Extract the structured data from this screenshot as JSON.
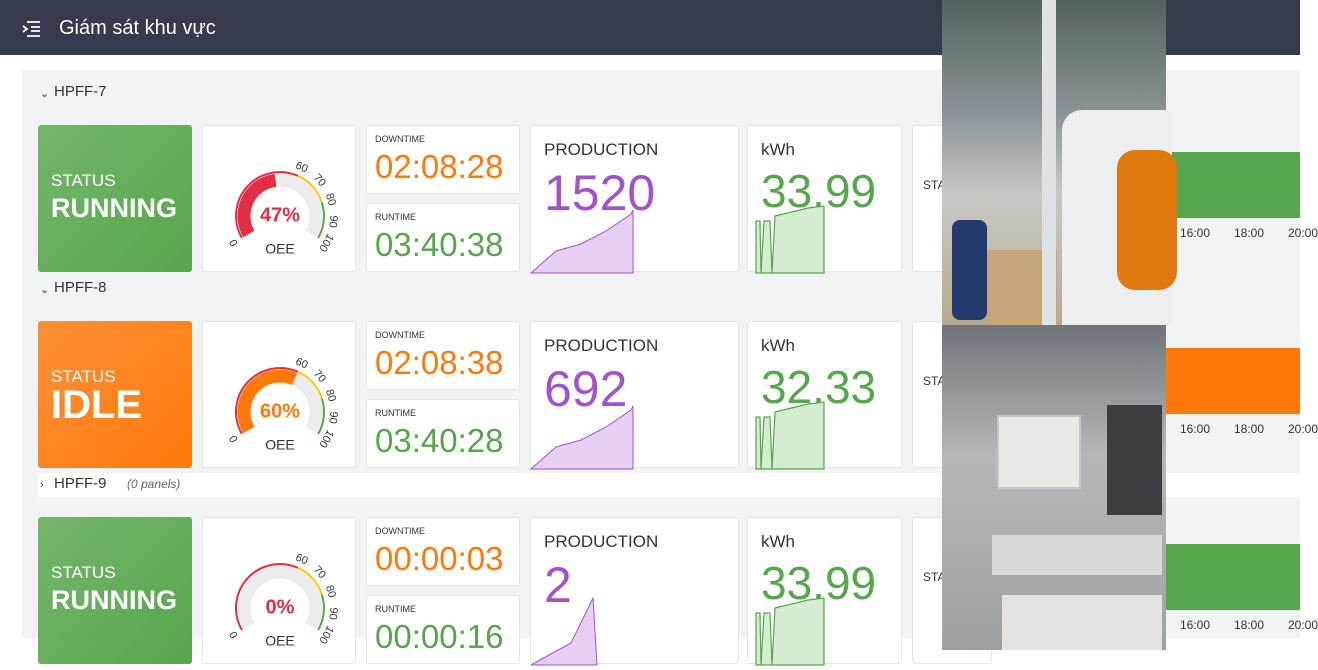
{
  "header": {
    "title": "Giám sát khu vực"
  },
  "gauge_ticks": [
    0,
    60,
    70,
    80,
    90,
    100
  ],
  "rows": [
    {
      "name": "HPFF-7",
      "status_label": "STATUS",
      "status": "RUNNING",
      "status_color": "#56a64b",
      "oee": {
        "value": 47,
        "label": "47%"
      },
      "oee_color": "#e02f44",
      "oee_label": "OEE",
      "downtime_label": "DOWNTIME",
      "downtime": "02:08:28",
      "runtime_label": "RUNTIME",
      "runtime": "03:40:38",
      "production_label": "PRODUCTION",
      "production": 1520,
      "kwh_label": "kWh",
      "kwh": 33.99,
      "stat_label": "STA",
      "times": [
        "16:00",
        "18:00",
        "20:00"
      ]
    },
    {
      "name": "HPFF-8",
      "status_label": "STATUS",
      "status": "IDLE",
      "status_color": "#ff780a",
      "oee": {
        "value": 60,
        "label": "60%"
      },
      "oee_color": "#ff780a",
      "oee_label": "OEE",
      "downtime_label": "DOWNTIME",
      "downtime": "02:08:38",
      "runtime_label": "RUNTIME",
      "runtime": "03:40:28",
      "production_label": "PRODUCTION",
      "production": 692,
      "kwh_label": "kWh",
      "kwh": 32.33,
      "stat_label": "STA",
      "times": [
        "16:00",
        "18:00",
        "20:00"
      ]
    },
    {
      "name": "HPFF-9",
      "note": "(0 panels)",
      "status_label": "STATUS",
      "status": "RUNNING",
      "status_color": "#56a64b",
      "oee": {
        "value": 0,
        "label": "0%"
      },
      "oee_color": "#e02f44",
      "oee_label": "OEE",
      "downtime_label": "DOWNTIME",
      "downtime": "00:00:03",
      "runtime_label": "RUNTIME",
      "runtime": "00:00:16",
      "production_label": "PRODUCTION",
      "production": 2,
      "kwh_label": "kWh",
      "kwh": 33.99,
      "stat_label": "STA",
      "times": [
        "16:00",
        "18:00",
        "20:00"
      ]
    }
  ]
}
